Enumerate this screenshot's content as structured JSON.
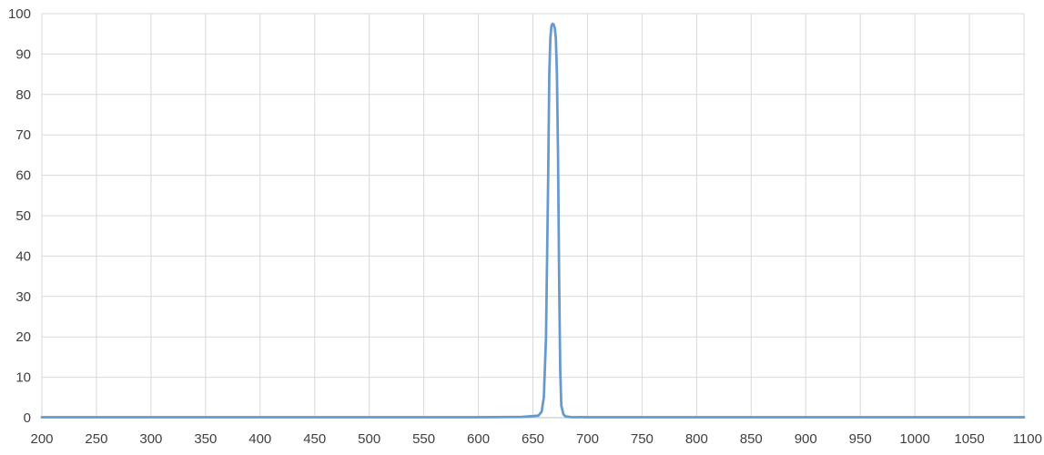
{
  "chart_data": {
    "type": "line",
    "title": "",
    "xlabel": "",
    "ylabel": "",
    "xlim": [
      200,
      1100
    ],
    "ylim": [
      0,
      100
    ],
    "x_ticks": [
      200,
      250,
      300,
      350,
      400,
      450,
      500,
      550,
      600,
      650,
      700,
      750,
      800,
      850,
      900,
      950,
      1000,
      1050,
      1100
    ],
    "x_tick_labels": [
      "200",
      "250",
      "300",
      "350",
      "400",
      "450",
      "500",
      "550",
      "600",
      "650",
      "700",
      "750",
      "800",
      "850",
      "900",
      "950",
      "1000",
      "1050",
      "1100"
    ],
    "y_ticks": [
      0,
      10,
      20,
      30,
      40,
      50,
      60,
      70,
      80,
      90,
      100
    ],
    "y_tick_labels": [
      "0",
      "10",
      "20",
      "30",
      "40",
      "50",
      "60",
      "70",
      "80",
      "90",
      "100"
    ],
    "grid": true,
    "legend": "none",
    "series": [
      {
        "color": "#6699cc",
        "x": [
          200,
          600,
          640,
          655,
          658,
          660,
          662,
          664,
          665,
          666,
          667,
          668,
          669,
          670,
          671,
          672,
          673,
          674,
          675,
          676,
          678,
          680,
          685,
          700,
          800,
          1100
        ],
        "y": [
          0.1,
          0.1,
          0.2,
          0.5,
          1.5,
          5,
          20,
          60,
          85,
          94,
          97,
          97.5,
          97.3,
          96.5,
          94,
          85,
          65,
          35,
          12,
          3,
          0.8,
          0.3,
          0.15,
          0.1,
          0.1,
          0.1
        ]
      }
    ]
  },
  "colors": {
    "grid": "#d9d9d9",
    "axis": "#bfbfbf",
    "tick_text": "#404040",
    "series": "#6699cc"
  }
}
